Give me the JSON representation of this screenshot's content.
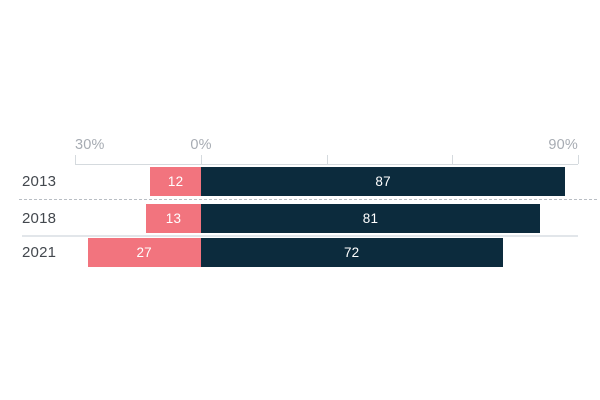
{
  "chart_data": {
    "type": "bar",
    "subtype": "diverging-stacked-horizontal",
    "title": "",
    "categories": [
      "2013",
      "2018",
      "2021"
    ],
    "series": [
      {
        "name": "left-of-zero",
        "values": [
          12,
          13,
          27
        ]
      },
      {
        "name": "right-of-zero",
        "values": [
          87,
          81,
          72
        ]
      }
    ],
    "rows": [
      {
        "year": "2013",
        "left_value": 12,
        "right_value": 87
      },
      {
        "year": "2018",
        "left_value": 13,
        "right_value": 81
      },
      {
        "year": "2021",
        "left_value": 27,
        "right_value": 72
      }
    ],
    "x_axis": {
      "min": -30,
      "max": 90,
      "ticks": [
        -30,
        0,
        30,
        60,
        90
      ],
      "tick_labels": {
        "left": "30%",
        "zero": "0%",
        "right": "90%"
      },
      "position": "top",
      "grid": false
    },
    "legend": "none",
    "colors": {
      "left_bar": "#f2747e",
      "right_bar": "#0c2b3d",
      "axis_line": "#d5dade",
      "axis_text": "#a7acb3",
      "year_text": "#43484e",
      "value_text": "#ffffff"
    }
  }
}
